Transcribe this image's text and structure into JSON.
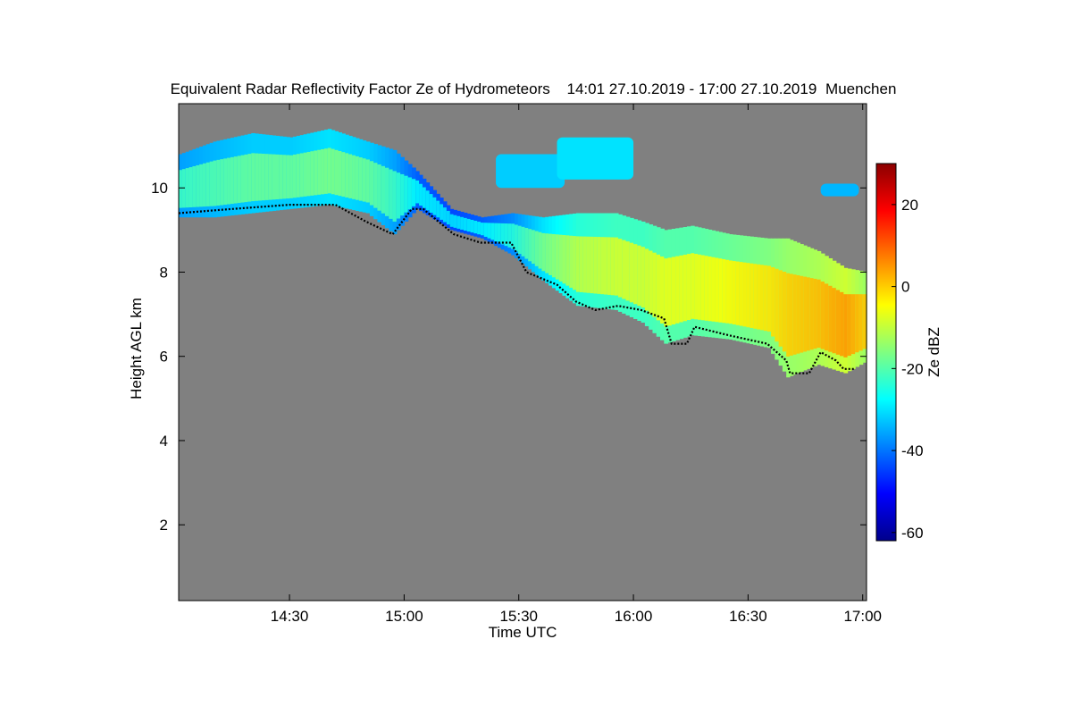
{
  "chart_data": {
    "type": "heatmap",
    "title": "Equivalent Radar Reflectivity Factor Ze of Hydrometeors",
    "time_range": "14:01 27.10.2019 - 17:00 27.10.2019",
    "location": "Muenchen",
    "xlabel": "Time UTC",
    "ylabel": "Height AGL km",
    "x_ticks": [
      "14:30",
      "15:00",
      "15:30",
      "16:00",
      "16:30",
      "17:00"
    ],
    "x_tick_minutes": [
      870,
      900,
      930,
      960,
      990,
      1020
    ],
    "xlim_minutes": [
      841,
      1021
    ],
    "y_ticks": [
      2,
      4,
      6,
      8,
      10
    ],
    "ylim": [
      0.2,
      12.0
    ],
    "colorbar": {
      "label": "Ze dBZ",
      "ticks": [
        -60,
        -40,
        -20,
        0,
        20
      ],
      "range": [
        -62,
        30
      ],
      "colors": [
        "#00008b",
        "#0000ff",
        "#0080ff",
        "#00ffff",
        "#80ff80",
        "#ffff00",
        "#ff8000",
        "#ff0000",
        "#8b0000"
      ]
    },
    "background_color": "#808080",
    "cloud_layer": [
      {
        "t": 841,
        "base": 9.3,
        "top": 10.8,
        "dbz": -22
      },
      {
        "t": 850,
        "base": 9.3,
        "top": 11.1,
        "dbz": -20
      },
      {
        "t": 860,
        "base": 9.4,
        "top": 11.3,
        "dbz": -18
      },
      {
        "t": 870,
        "base": 9.5,
        "top": 11.2,
        "dbz": -18
      },
      {
        "t": 880,
        "base": 9.6,
        "top": 11.4,
        "dbz": -16
      },
      {
        "t": 890,
        "base": 9.4,
        "top": 11.1,
        "dbz": -18
      },
      {
        "t": 897,
        "base": 8.9,
        "top": 10.9,
        "dbz": -22
      },
      {
        "t": 903,
        "base": 9.5,
        "top": 10.4,
        "dbz": -28
      },
      {
        "t": 912,
        "base": 9.0,
        "top": 9.5,
        "dbz": -30
      },
      {
        "t": 920,
        "base": 8.8,
        "top": 9.3,
        "dbz": -28
      },
      {
        "t": 928,
        "base": 8.4,
        "top": 9.4,
        "dbz": -24
      },
      {
        "t": 936,
        "base": 7.8,
        "top": 9.3,
        "dbz": -16
      },
      {
        "t": 945,
        "base": 7.2,
        "top": 9.4,
        "dbz": -10
      },
      {
        "t": 955,
        "base": 7.1,
        "top": 9.4,
        "dbz": -8
      },
      {
        "t": 962,
        "base": 6.8,
        "top": 9.2,
        "dbz": -8
      },
      {
        "t": 968,
        "base": 6.3,
        "top": 9.0,
        "dbz": -6
      },
      {
        "t": 975,
        "base": 6.5,
        "top": 9.1,
        "dbz": -6
      },
      {
        "t": 985,
        "base": 6.4,
        "top": 8.9,
        "dbz": -4
      },
      {
        "t": 995,
        "base": 6.2,
        "top": 8.8,
        "dbz": -2
      },
      {
        "t": 1000,
        "base": 5.5,
        "top": 8.8,
        "dbz": 0
      },
      {
        "t": 1008,
        "base": 5.8,
        "top": 8.5,
        "dbz": 2
      },
      {
        "t": 1015,
        "base": 5.6,
        "top": 8.1,
        "dbz": 5
      },
      {
        "t": 1021,
        "base": 5.9,
        "top": 8.0,
        "dbz": 0
      }
    ],
    "upper_patches": [
      {
        "t0": 924,
        "t1": 942,
        "base": 10.0,
        "top": 10.8,
        "dbz": -32
      },
      {
        "t0": 940,
        "t1": 960,
        "base": 10.2,
        "top": 11.2,
        "dbz": -30
      },
      {
        "t0": 1009,
        "t1": 1019,
        "base": 9.8,
        "top": 10.1,
        "dbz": -34
      }
    ],
    "cloud_base_trace": [
      {
        "t": 841,
        "h": 9.4
      },
      {
        "t": 855,
        "h": 9.5
      },
      {
        "t": 870,
        "h": 9.6
      },
      {
        "t": 882,
        "h": 9.6
      },
      {
        "t": 890,
        "h": 9.2
      },
      {
        "t": 897,
        "h": 8.9
      },
      {
        "t": 902,
        "h": 9.5
      },
      {
        "t": 905,
        "h": 9.5
      },
      {
        "t": 913,
        "h": 8.9
      },
      {
        "t": 920,
        "h": 8.7
      },
      {
        "t": 928,
        "h": 8.7
      },
      {
        "t": 932,
        "h": 8.0
      },
      {
        "t": 940,
        "h": 7.7
      },
      {
        "t": 945,
        "h": 7.3
      },
      {
        "t": 950,
        "h": 7.1
      },
      {
        "t": 956,
        "h": 7.2
      },
      {
        "t": 962,
        "h": 7.1
      },
      {
        "t": 968,
        "h": 6.9
      },
      {
        "t": 970,
        "h": 6.3
      },
      {
        "t": 974,
        "h": 6.3
      },
      {
        "t": 976,
        "h": 6.7
      },
      {
        "t": 985,
        "h": 6.5
      },
      {
        "t": 995,
        "h": 6.3
      },
      {
        "t": 1000,
        "h": 5.9
      },
      {
        "t": 1001,
        "h": 5.6
      },
      {
        "t": 1006,
        "h": 5.6
      },
      {
        "t": 1009,
        "h": 6.1
      },
      {
        "t": 1013,
        "h": 5.9
      },
      {
        "t": 1015,
        "h": 5.7
      },
      {
        "t": 1018,
        "h": 5.7
      }
    ]
  }
}
